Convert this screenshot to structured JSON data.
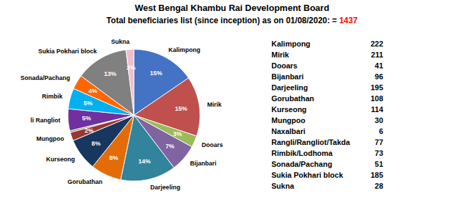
{
  "chart_data": {
    "type": "pie",
    "title": "West Bengal Khambu Rai Development Board",
    "subtitle": "Total beneficiaries list (since inception) as on 01/08/2020:  = ",
    "total": 1437,
    "total_color": "red",
    "categories": [
      "Kalimpong",
      "Mirik",
      "Dooars",
      "Bijanbari",
      "Darjeeling",
      "Gorubathan",
      "Kurseong",
      "Mungpoo",
      "Naxalbari",
      "Rangli/Rangliot/Takda",
      "Rimbik/Lodhoma",
      "Sonada/Pachang",
      "Sukia Pokhari block",
      "Sukna"
    ],
    "values": [
      222,
      211,
      41,
      96,
      195,
      108,
      114,
      30,
      6,
      77,
      73,
      51,
      185,
      28
    ],
    "colors": [
      "#4472C4",
      "#C0504D",
      "#9BBB59",
      "#8064A2",
      "#31849B",
      "#E36C09",
      "#17375E",
      "#953734",
      "#76923C",
      "#7030A0",
      "#00B0F0",
      "#FF6600",
      "#808080",
      "#F2BDCD"
    ],
    "slice_labels": [
      "Kalimpong",
      "Mirik",
      "Dooars",
      "Bijanbari",
      "Darjeeling",
      "Gorubathan",
      "Kurseong",
      "Mungpoo",
      null,
      "li Rangliot",
      "Rimbik",
      "Sonada/Pachang",
      "Sukia Pokhari block",
      "Sukna"
    ],
    "percentages": [
      15,
      15,
      3,
      7,
      14,
      8,
      8,
      2,
      null,
      5,
      5,
      4,
      13,
      2
    ],
    "percentage_labels": [
      "15%",
      "15%",
      "3%",
      "7%",
      "14%",
      "8%",
      "8%",
      "2%",
      null,
      "5%",
      "5%",
      "4%",
      "13%",
      "2%"
    ],
    "legend": "right"
  }
}
